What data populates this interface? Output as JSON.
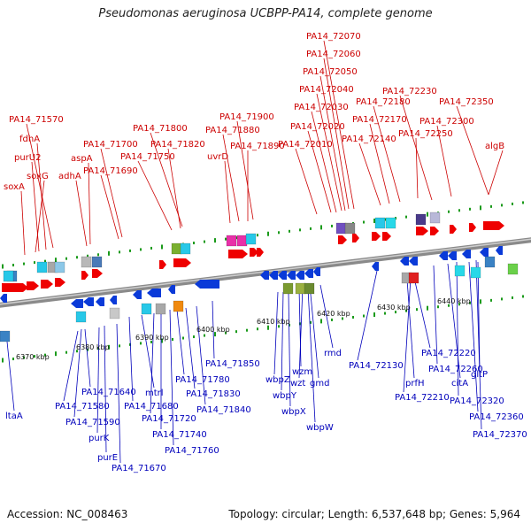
{
  "title": "Pseudomonas aeruginosa UCBPP-PA14, complete genome",
  "footer": {
    "accession": "Accession: NC_008463",
    "summary": "Topology: circular; Length: 6,537,648 bp; Genes: 5,964"
  },
  "colors": {
    "forward_gene": "#ee0000",
    "reverse_gene": "#0a3ad8",
    "backbone": "#8a8a8a",
    "tick": "#1a9a1a",
    "top_label": "#cc0000",
    "bottom_label": "#0000bb"
  },
  "scale_labels": [
    "6370 kbp",
    "6380 kbp",
    "6390 kbp",
    "6400 kbp",
    "6410 kbp",
    "6420 kbp",
    "6430 kbp",
    "6440 kbp"
  ],
  "top_genes": [
    "PA14_71570",
    "fdhA",
    "purU2",
    "soxG",
    "soxA",
    "adhA",
    "aspA",
    "PA14_71700",
    "PA14_71690",
    "PA14_71800",
    "PA14_71820",
    "PA14_71750",
    "PA14_71900",
    "PA14_71880",
    "uvrD",
    "PA14_71890",
    "PA14_72070",
    "PA14_72060",
    "PA14_72050",
    "PA14_72040",
    "PA14_72030",
    "PA14_72020",
    "PA14_72010",
    "PA14_72230",
    "PA14_72180",
    "PA14_72170",
    "PA14_72140",
    "PA14_72350",
    "PA14_72300",
    "PA14_72250",
    "algB"
  ],
  "bottom_genes": [
    "ltaA",
    "PA14_71640",
    "PA14_71580",
    "PA14_71590",
    "purK",
    "purE",
    "PA14_71670",
    "mtrl",
    "PA14_71680",
    "PA14_71720",
    "PA14_71740",
    "PA14_71760",
    "PA14_71780",
    "PA14_71830",
    "PA14_71840",
    "PA14_71850",
    "wbpZ",
    "wbpY",
    "wbpX",
    "wbpW",
    "wzm",
    "wzt",
    "gmd",
    "rmd",
    "PA14_72130",
    "prfH",
    "PA14_72210",
    "PA14_72220",
    "PA14_72260",
    "citA",
    "gltP",
    "PA14_72320",
    "PA14_72360",
    "PA14_72370"
  ]
}
